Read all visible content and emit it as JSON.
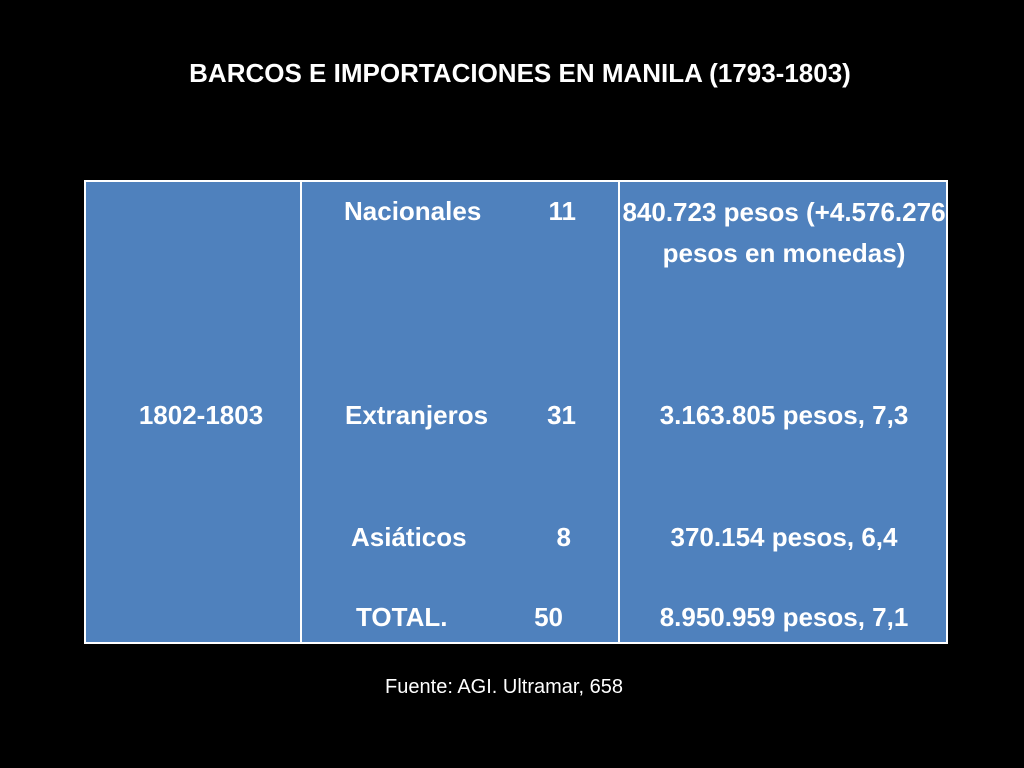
{
  "title": "BARCOS E IMPORTACIONES EN MANILA (1793-1803)",
  "table": {
    "period": "1802-1803",
    "rows": [
      {
        "category": "Nacionales",
        "ships": "11",
        "imports": "840.723 pesos (+4.576.276 pesos en monedas)"
      },
      {
        "category": "Extranjeros",
        "ships": "31",
        "imports": "3.163.805 pesos, 7,3"
      },
      {
        "category": "Asiáticos",
        "ships": "8",
        "imports": "370.154 pesos, 6,4"
      },
      {
        "category": "TOTAL.",
        "ships": "50",
        "imports": "8.950.959 pesos, 7,1"
      }
    ]
  },
  "source": "Fuente: AGI. Ultramar, 658",
  "colors": {
    "background": "#000000",
    "table_fill": "#4f81bd",
    "text": "#ffffff"
  }
}
